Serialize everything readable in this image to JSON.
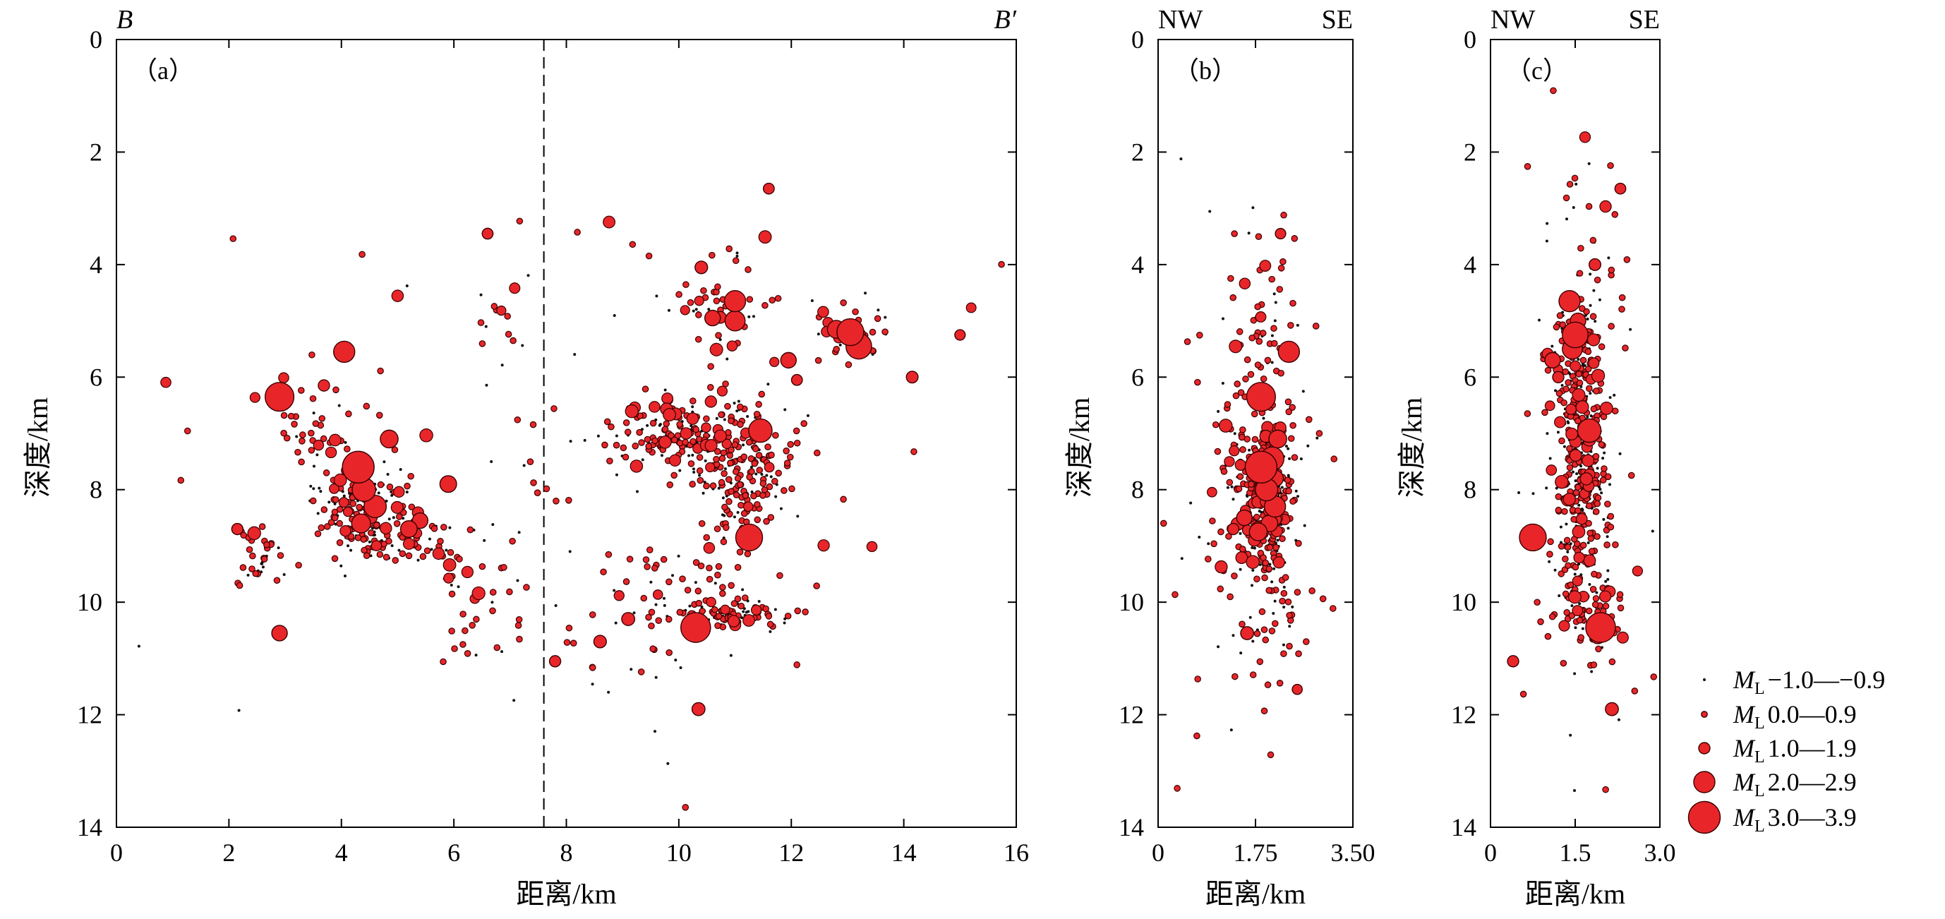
{
  "figure": {
    "background": "#ffffff",
    "event_fill": "#e8262a",
    "event_stroke": "#3a0000"
  },
  "chart_data": [
    {
      "id": "a",
      "type": "scatter",
      "panel_label": "（a）",
      "corner_left": "B",
      "corner_right": "B′",
      "xlabel": "距离/km",
      "ylabel": "深度/km",
      "xlim": [
        0,
        16
      ],
      "ylim": [
        0,
        14
      ],
      "y_inverted": true,
      "xticks": [
        0,
        2,
        4,
        6,
        8,
        10,
        12,
        14,
        16
      ],
      "xtick_labels": [
        "0",
        "2",
        "4",
        "6",
        "8",
        "10",
        "12",
        "14",
        "16"
      ],
      "yticks": [
        0,
        2,
        4,
        6,
        8,
        10,
        12,
        14
      ],
      "ytick_labels": [
        "0",
        "2",
        "4",
        "6",
        "8",
        "10",
        "12",
        "14"
      ],
      "grid": false,
      "dashed_vline_x": 7.6,
      "clusters": [
        {
          "x": 4.4,
          "y": 8.3,
          "sx": 0.45,
          "sy": 0.45,
          "n": 150
        },
        {
          "x": 5.0,
          "y": 8.9,
          "sx": 0.5,
          "sy": 0.2,
          "n": 70
        },
        {
          "x": 2.5,
          "y": 9.2,
          "sx": 0.2,
          "sy": 0.3,
          "n": 35
        },
        {
          "x": 3.6,
          "y": 7.0,
          "sx": 0.35,
          "sy": 0.5,
          "n": 35
        },
        {
          "x": 10.3,
          "y": 7.0,
          "sx": 0.75,
          "sy": 0.35,
          "n": 220
        },
        {
          "x": 11.2,
          "y": 7.9,
          "sx": 0.45,
          "sy": 0.5,
          "n": 140
        },
        {
          "x": 11.0,
          "y": 10.2,
          "sx": 0.45,
          "sy": 0.15,
          "n": 90
        },
        {
          "x": 10.8,
          "y": 4.8,
          "sx": 0.4,
          "sy": 0.4,
          "n": 50
        },
        {
          "x": 13.1,
          "y": 5.2,
          "sx": 0.35,
          "sy": 0.25,
          "n": 45
        },
        {
          "x": 10.2,
          "y": 9.6,
          "sx": 0.6,
          "sy": 0.6,
          "n": 40
        },
        {
          "x": 6.5,
          "y": 9.8,
          "sx": 0.6,
          "sy": 0.7,
          "n": 35
        },
        {
          "x": 8.8,
          "y": 10.5,
          "sx": 0.9,
          "sy": 0.6,
          "n": 30
        },
        {
          "x": 6.9,
          "y": 5.0,
          "sx": 0.3,
          "sy": 0.6,
          "n": 12
        },
        {
          "x": 7.8,
          "y": 7.5,
          "sx": 4.5,
          "sy": 2.8,
          "n": 90
        }
      ],
      "large_events": [
        {
          "x": 2.9,
          "y": 6.35,
          "m": 3.2
        },
        {
          "x": 4.05,
          "y": 5.55,
          "m": 2.5
        },
        {
          "x": 4.3,
          "y": 7.6,
          "m": 3.5
        },
        {
          "x": 4.4,
          "y": 8.0,
          "m": 2.7
        },
        {
          "x": 4.6,
          "y": 8.3,
          "m": 2.6
        },
        {
          "x": 4.35,
          "y": 8.6,
          "m": 2.3
        },
        {
          "x": 4.85,
          "y": 7.1,
          "m": 2.2
        },
        {
          "x": 5.2,
          "y": 8.7,
          "m": 2.1
        },
        {
          "x": 5.4,
          "y": 8.55,
          "m": 2.0
        },
        {
          "x": 5.9,
          "y": 7.9,
          "m": 2.1
        },
        {
          "x": 2.9,
          "y": 10.55,
          "m": 2.0
        },
        {
          "x": 11.45,
          "y": 6.95,
          "m": 2.7
        },
        {
          "x": 11.0,
          "y": 4.65,
          "m": 2.5
        },
        {
          "x": 11.0,
          "y": 5.0,
          "m": 2.4
        },
        {
          "x": 10.6,
          "y": 4.95,
          "m": 2.0
        },
        {
          "x": 10.4,
          "y": 4.05,
          "m": 1.8
        },
        {
          "x": 13.2,
          "y": 5.45,
          "m": 2.9
        },
        {
          "x": 13.05,
          "y": 5.2,
          "m": 3.0
        },
        {
          "x": 12.8,
          "y": 5.15,
          "m": 2.2
        },
        {
          "x": 11.25,
          "y": 8.85,
          "m": 3.0
        },
        {
          "x": 10.3,
          "y": 10.45,
          "m": 3.3
        },
        {
          "x": 11.95,
          "y": 5.7,
          "m": 2.0
        },
        {
          "x": 9.1,
          "y": 10.3,
          "m": 1.9
        },
        {
          "x": 8.6,
          "y": 10.7,
          "m": 1.8
        },
        {
          "x": 10.35,
          "y": 11.9,
          "m": 1.9
        },
        {
          "x": 14.15,
          "y": 6.0,
          "m": 1.6
        },
        {
          "x": 6.6,
          "y": 3.45,
          "m": 1.4
        },
        {
          "x": 11.6,
          "y": 2.65,
          "m": 1.4
        },
        {
          "x": 7.8,
          "y": 11.05,
          "m": 1.5
        },
        {
          "x": 2.15,
          "y": 8.7,
          "m": 1.5
        },
        {
          "x": 12.1,
          "y": 6.05,
          "m": 1.4
        },
        {
          "x": 15.0,
          "y": 5.25,
          "m": 1.3
        }
      ]
    },
    {
      "id": "b",
      "type": "scatter",
      "panel_label": "（b）",
      "corner_left": "NW",
      "corner_right": "SE",
      "xlabel": "距离/km",
      "ylabel": "深度/km",
      "xlim": [
        0,
        3.5
      ],
      "ylim": [
        0,
        14
      ],
      "y_inverted": true,
      "xticks": [
        0,
        1.75,
        3.5
      ],
      "xtick_labels": [
        "0",
        "1.75",
        "3.50"
      ],
      "yticks": [
        0,
        2,
        4,
        6,
        8,
        10,
        12,
        14
      ],
      "ytick_labels": [
        "0",
        "2",
        "4",
        "6",
        "8",
        "10",
        "12",
        "14"
      ],
      "grid": false,
      "clusters": [
        {
          "x": 1.95,
          "y": 8.3,
          "sx": 0.22,
          "sy": 0.7,
          "n": 260
        },
        {
          "x": 1.85,
          "y": 7.0,
          "sx": 0.3,
          "sy": 1.2,
          "n": 120
        },
        {
          "x": 2.1,
          "y": 5.0,
          "sx": 0.4,
          "sy": 1.2,
          "n": 40
        },
        {
          "x": 2.2,
          "y": 10.0,
          "sx": 0.35,
          "sy": 0.8,
          "n": 40
        },
        {
          "x": 1.2,
          "y": 9.4,
          "sx": 0.55,
          "sy": 1.2,
          "n": 30
        },
        {
          "x": 1.8,
          "y": 8.0,
          "sx": 0.9,
          "sy": 2.8,
          "n": 45
        }
      ],
      "large_events": [
        {
          "x": 1.85,
          "y": 7.6,
          "m": 3.5
        },
        {
          "x": 2.05,
          "y": 7.45,
          "m": 2.7
        },
        {
          "x": 1.95,
          "y": 8.0,
          "m": 2.6
        },
        {
          "x": 2.1,
          "y": 8.3,
          "m": 2.5
        },
        {
          "x": 1.85,
          "y": 6.35,
          "m": 3.2
        },
        {
          "x": 2.35,
          "y": 5.55,
          "m": 2.5
        },
        {
          "x": 2.15,
          "y": 7.1,
          "m": 2.2
        },
        {
          "x": 1.8,
          "y": 8.75,
          "m": 2.2
        },
        {
          "x": 1.55,
          "y": 8.5,
          "m": 2.0
        },
        {
          "x": 2.0,
          "y": 8.6,
          "m": 2.1
        },
        {
          "x": 1.6,
          "y": 10.55,
          "m": 1.9
        },
        {
          "x": 2.1,
          "y": 7.8,
          "m": 2.1
        },
        {
          "x": 2.2,
          "y": 3.45,
          "m": 1.3
        },
        {
          "x": 1.35,
          "y": 8.7,
          "m": 1.5
        },
        {
          "x": 2.5,
          "y": 11.55,
          "m": 1.2
        }
      ]
    },
    {
      "id": "c",
      "type": "scatter",
      "panel_label": "（c）",
      "corner_left": "NW",
      "corner_right": "SE",
      "xlabel": "距离/km",
      "ylabel": "深度/km",
      "xlim": [
        0,
        3.0
      ],
      "ylim": [
        0,
        14
      ],
      "y_inverted": true,
      "xticks": [
        0,
        1.5,
        3.0
      ],
      "xtick_labels": [
        "0",
        "1.5",
        "3.0"
      ],
      "yticks": [
        0,
        2,
        4,
        6,
        8,
        10,
        12,
        14
      ],
      "ytick_labels": [
        "0",
        "2",
        "4",
        "6",
        "8",
        "10",
        "12",
        "14"
      ],
      "grid": false,
      "clusters": [
        {
          "x": 1.6,
          "y": 7.6,
          "sx": 0.22,
          "sy": 0.7,
          "n": 240
        },
        {
          "x": 1.55,
          "y": 5.3,
          "sx": 0.3,
          "sy": 0.45,
          "n": 90
        },
        {
          "x": 1.7,
          "y": 10.1,
          "sx": 0.3,
          "sy": 0.4,
          "n": 100
        },
        {
          "x": 1.6,
          "y": 6.3,
          "sx": 0.2,
          "sy": 0.5,
          "n": 50
        },
        {
          "x": 1.7,
          "y": 9.0,
          "sx": 0.3,
          "sy": 0.4,
          "n": 40
        },
        {
          "x": 1.6,
          "y": 7.5,
          "sx": 0.6,
          "sy": 2.8,
          "n": 60
        },
        {
          "x": 1.8,
          "y": 3.6,
          "sx": 0.4,
          "sy": 0.8,
          "n": 20
        }
      ],
      "large_events": [
        {
          "x": 1.4,
          "y": 4.65,
          "m": 2.5
        },
        {
          "x": 1.5,
          "y": 5.25,
          "m": 2.9
        },
        {
          "x": 1.45,
          "y": 5.5,
          "m": 2.4
        },
        {
          "x": 1.75,
          "y": 6.95,
          "m": 2.7
        },
        {
          "x": 0.75,
          "y": 8.85,
          "m": 3.0
        },
        {
          "x": 1.95,
          "y": 10.45,
          "m": 3.3
        },
        {
          "x": 1.1,
          "y": 5.7,
          "m": 2.0
        },
        {
          "x": 2.15,
          "y": 11.9,
          "m": 1.9
        },
        {
          "x": 1.9,
          "y": 10.6,
          "m": 2.0
        },
        {
          "x": 1.55,
          "y": 5.0,
          "m": 2.0
        },
        {
          "x": 1.85,
          "y": 4.0,
          "m": 1.6
        },
        {
          "x": 2.3,
          "y": 2.65,
          "m": 1.4
        },
        {
          "x": 0.4,
          "y": 11.05,
          "m": 1.5
        },
        {
          "x": 1.2,
          "y": 6.0,
          "m": 1.5
        }
      ]
    }
  ],
  "legend": {
    "position": "right",
    "items": [
      {
        "prefix": "M",
        "sub": "L",
        "range": "−1.0—−0.9",
        "mag": -0.5
      },
      {
        "prefix": "M",
        "sub": "L",
        "range": "0.0—0.9",
        "mag": 0.5
      },
      {
        "prefix": "M",
        "sub": "L",
        "range": "1.0—1.9",
        "mag": 1.5
      },
      {
        "prefix": "M",
        "sub": "L",
        "range": "2.0—2.9",
        "mag": 2.5
      },
      {
        "prefix": "M",
        "sub": "L",
        "range": "3.0—3.9",
        "mag": 3.5
      }
    ]
  }
}
